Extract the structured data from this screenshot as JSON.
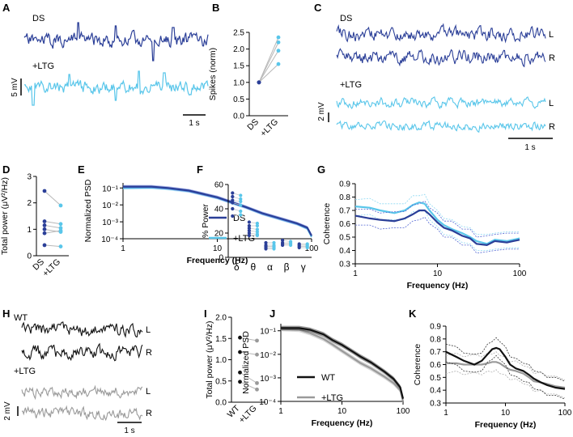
{
  "figure": {
    "panel_letters": [
      "A",
      "B",
      "C",
      "D",
      "E",
      "F",
      "G",
      "H",
      "I",
      "J",
      "K"
    ],
    "colors": {
      "ds": "#2b3f98",
      "ltg": "#59c6ea",
      "wt": "#111111",
      "wt_ltg": "#9a9a9a",
      "ci_ds": "#5468d4",
      "ci_ltg": "#8fd9f3",
      "ci_wt": "#333333",
      "ci_wt_ltg": "#b0b0b0"
    }
  },
  "panelA": {
    "label_ds": "DS",
    "label_ltg": "+LTG",
    "vscale": "5 mV",
    "tscale": "1 s"
  },
  "panelC": {
    "label_ds": "DS",
    "label_ltg": "+LTG",
    "ch_L": "L",
    "ch_R": "R",
    "vscale": "2 mV",
    "tscale": "1 s"
  },
  "panelH": {
    "label_wt": "WT",
    "label_ltg": "+LTG",
    "ch_L": "L",
    "ch_R": "R",
    "vscale": "2 mV",
    "tscale": "1 s"
  },
  "chart_data": [
    {
      "panel": "B",
      "type": "scatter",
      "ylabel": "Spikes (norm)",
      "ylim": [
        0,
        2.5
      ],
      "yticks": [
        "0.0",
        "0.5",
        "1.0",
        "1.5",
        "2.0",
        "2.5"
      ],
      "categories": [
        "DS",
        "+LTG"
      ],
      "pairs": [
        [
          1.0,
          1.55
        ],
        [
          1.0,
          1.95
        ],
        [
          1.0,
          2.2
        ],
        [
          1.0,
          2.35
        ]
      ]
    },
    {
      "panel": "D",
      "type": "scatter",
      "ylabel": "Total power (μV²/Hz)",
      "ylim": [
        0,
        3
      ],
      "yticks": [
        "0",
        "1",
        "2",
        "3"
      ],
      "categories": [
        "DS",
        "+LTG"
      ],
      "pairs": [
        [
          2.45,
          1.9
        ],
        [
          1.3,
          1.2
        ],
        [
          1.15,
          1.05
        ],
        [
          1.0,
          0.9
        ],
        [
          0.85,
          0.95
        ],
        [
          0.4,
          0.35
        ]
      ]
    },
    {
      "panel": "E",
      "type": "line",
      "xlabel": "Frequency (Hz)",
      "ylabel": "Normalized PSD",
      "xticks": [
        "1",
        "10",
        "100"
      ],
      "yticks": [
        "10⁻⁴",
        "10⁻³",
        "10⁻²",
        "10⁻¹"
      ],
      "legend": [
        "DS",
        "+LTG"
      ],
      "x": [
        1,
        2,
        3,
        5,
        7,
        10,
        15,
        20,
        30,
        50,
        70,
        90,
        100
      ],
      "series": [
        {
          "name": "DS",
          "values": [
            0.12,
            0.12,
            0.1,
            0.07,
            0.045,
            0.028,
            0.013,
            0.0075,
            0.0032,
            0.0014,
            0.0008,
            0.00045,
            0.00015
          ]
        },
        {
          "name": "+LTG",
          "values": [
            0.1,
            0.105,
            0.09,
            0.065,
            0.042,
            0.026,
            0.012,
            0.0072,
            0.003,
            0.0013,
            0.00075,
            0.0004,
            0.00013
          ]
        }
      ]
    },
    {
      "panel": "F",
      "type": "scatter",
      "ylabel": "% Power",
      "ylim": [
        0,
        60
      ],
      "yticks": [
        "0",
        "20",
        "40",
        "60"
      ],
      "categories": [
        "δ",
        "θ",
        "α",
        "β",
        "γ"
      ],
      "series": [
        {
          "name": "DS",
          "values": [
            [
              53,
              50,
              47,
              45,
              40,
              34
            ],
            [
              29,
              26,
              24,
              22,
              20,
              18
            ],
            [
              12,
              10,
              9,
              8,
              7
            ],
            [
              14,
              12,
              11,
              10
            ],
            [
              11,
              10,
              9,
              8
            ]
          ]
        },
        {
          "name": "+LTG",
          "values": [
            [
              51,
              48,
              46,
              43,
              38,
              35
            ],
            [
              28,
              26,
              23,
              21,
              19,
              18
            ],
            [
              12,
              10,
              9,
              8,
              7
            ],
            [
              13,
              12,
              11,
              10
            ],
            [
              11,
              10,
              9,
              8
            ]
          ]
        }
      ]
    },
    {
      "panel": "G",
      "type": "line",
      "xlabel": "Frequency (Hz)",
      "ylabel": "Coherence",
      "ylim": [
        0.3,
        0.9
      ],
      "xticks": [
        "1",
        "10",
        "100"
      ],
      "yticks": [
        "0.3",
        "0.4",
        "0.5",
        "0.6",
        "0.7",
        "0.8",
        "0.9"
      ],
      "x": [
        1,
        1.5,
        2,
        3,
        4,
        5,
        6,
        7,
        8,
        10,
        12,
        15,
        20,
        25,
        30,
        40,
        50,
        70,
        100
      ],
      "series": [
        {
          "name": "DS",
          "values": [
            0.66,
            0.64,
            0.63,
            0.62,
            0.64,
            0.67,
            0.7,
            0.7,
            0.67,
            0.61,
            0.57,
            0.55,
            0.51,
            0.49,
            0.45,
            0.44,
            0.47,
            0.46,
            0.48
          ]
        },
        {
          "name": "+LTG",
          "values": [
            0.73,
            0.72,
            0.7,
            0.68,
            0.7,
            0.74,
            0.76,
            0.75,
            0.7,
            0.63,
            0.59,
            0.56,
            0.53,
            0.5,
            0.47,
            0.45,
            0.48,
            0.47,
            0.49
          ]
        }
      ]
    },
    {
      "panel": "I",
      "type": "scatter",
      "ylabel": "Total power (μV²/Hz)",
      "ylim": [
        0,
        2.0
      ],
      "yticks": [
        "0.0",
        "0.5",
        "1.0",
        "1.5",
        "2.0"
      ],
      "categories": [
        "WT",
        "+LTG"
      ],
      "pairs": [
        [
          1.52,
          1.45
        ],
        [
          1.18,
          1.12
        ],
        [
          0.7,
          0.45
        ],
        [
          0.48,
          0.3
        ]
      ]
    },
    {
      "panel": "J",
      "type": "line",
      "xlabel": "Frequency (Hz)",
      "ylabel": "Normalized PSD",
      "xticks": [
        "1",
        "10",
        "100"
      ],
      "yticks": [
        "10⁻⁴",
        "10⁻³",
        "10⁻²",
        "10⁻¹"
      ],
      "legend": [
        "WT",
        "+LTG"
      ],
      "x": [
        1,
        2,
        3,
        5,
        7,
        10,
        15,
        20,
        30,
        50,
        70,
        90,
        100
      ],
      "series": [
        {
          "name": "WT",
          "values": [
            0.13,
            0.13,
            0.11,
            0.07,
            0.04,
            0.025,
            0.013,
            0.008,
            0.0045,
            0.0018,
            0.0009,
            0.0004,
            0.00013
          ]
        },
        {
          "name": "+LTG",
          "values": [
            0.12,
            0.11,
            0.08,
            0.045,
            0.026,
            0.014,
            0.007,
            0.0043,
            0.0025,
            0.0011,
            0.0006,
            0.0003,
            0.0001
          ]
        }
      ]
    },
    {
      "panel": "K",
      "type": "line",
      "xlabel": "Frequency (Hz)",
      "ylabel": "Coherence",
      "ylim": [
        0.3,
        0.9
      ],
      "xticks": [
        "1",
        "10",
        "100"
      ],
      "yticks": [
        "0.3",
        "0.4",
        "0.5",
        "0.6",
        "0.7",
        "0.8",
        "0.9"
      ],
      "x": [
        1,
        1.5,
        2,
        3,
        4,
        5,
        6,
        7,
        8,
        10,
        12,
        15,
        20,
        25,
        30,
        40,
        50,
        70,
        100
      ],
      "series": [
        {
          "name": "WT",
          "values": [
            0.7,
            0.66,
            0.63,
            0.6,
            0.63,
            0.68,
            0.72,
            0.73,
            0.72,
            0.66,
            0.6,
            0.57,
            0.55,
            0.52,
            0.49,
            0.46,
            0.44,
            0.42,
            0.41
          ]
        },
        {
          "name": "+LTG",
          "values": [
            0.61,
            0.61,
            0.6,
            0.6,
            0.6,
            0.61,
            0.62,
            0.62,
            0.61,
            0.58,
            0.56,
            0.55,
            0.53,
            0.5,
            0.47,
            0.46,
            0.45,
            0.43,
            0.42
          ]
        }
      ]
    }
  ]
}
